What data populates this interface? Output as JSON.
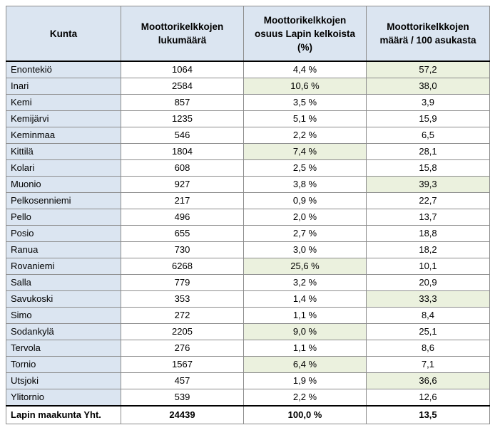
{
  "header": {
    "col1": "Kunta",
    "col2_line1": "Moottorikelkkojen",
    "col2_line2": "lukumäärä",
    "col3_line1": "Moottorikelkkojen",
    "col3_line2": "osuus Lapin kelkoista",
    "col3_line3": "(%)",
    "col4_line1": "Moottorikelkkojen",
    "col4_line2": "määrä / 100 asukasta"
  },
  "highlight_color": "#ebf1de",
  "name_column_color": "#dbe5f1",
  "rows": [
    {
      "kunta": "Enontekiö",
      "lukumaara": "1064",
      "osuus": "4,4 %",
      "per100": "57,2",
      "hl_osuus": false,
      "hl_per100": true
    },
    {
      "kunta": "Inari",
      "lukumaara": "2584",
      "osuus": "10,6 %",
      "per100": "38,0",
      "hl_osuus": true,
      "hl_per100": true
    },
    {
      "kunta": "Kemi",
      "lukumaara": "857",
      "osuus": "3,5 %",
      "per100": "3,9",
      "hl_osuus": false,
      "hl_per100": false
    },
    {
      "kunta": "Kemijärvi",
      "lukumaara": "1235",
      "osuus": "5,1 %",
      "per100": "15,9",
      "hl_osuus": false,
      "hl_per100": false
    },
    {
      "kunta": "Keminmaa",
      "lukumaara": "546",
      "osuus": "2,2 %",
      "per100": "6,5",
      "hl_osuus": false,
      "hl_per100": false
    },
    {
      "kunta": "Kittilä",
      "lukumaara": "1804",
      "osuus": "7,4 %",
      "per100": "28,1",
      "hl_osuus": true,
      "hl_per100": false
    },
    {
      "kunta": "Kolari",
      "lukumaara": "608",
      "osuus": "2,5 %",
      "per100": "15,8",
      "hl_osuus": false,
      "hl_per100": false
    },
    {
      "kunta": "Muonio",
      "lukumaara": "927",
      "osuus": "3,8 %",
      "per100": "39,3",
      "hl_osuus": false,
      "hl_per100": true
    },
    {
      "kunta": "Pelkosenniemi",
      "lukumaara": "217",
      "osuus": "0,9 %",
      "per100": "22,7",
      "hl_osuus": false,
      "hl_per100": false
    },
    {
      "kunta": "Pello",
      "lukumaara": "496",
      "osuus": "2,0 %",
      "per100": "13,7",
      "hl_osuus": false,
      "hl_per100": false
    },
    {
      "kunta": "Posio",
      "lukumaara": "655",
      "osuus": "2,7 %",
      "per100": "18,8",
      "hl_osuus": false,
      "hl_per100": false
    },
    {
      "kunta": "Ranua",
      "lukumaara": "730",
      "osuus": "3,0 %",
      "per100": "18,2",
      "hl_osuus": false,
      "hl_per100": false
    },
    {
      "kunta": "Rovaniemi",
      "lukumaara": "6268",
      "osuus": "25,6 %",
      "per100": "10,1",
      "hl_osuus": true,
      "hl_per100": false
    },
    {
      "kunta": "Salla",
      "lukumaara": "779",
      "osuus": "3,2 %",
      "per100": "20,9",
      "hl_osuus": false,
      "hl_per100": false
    },
    {
      "kunta": "Savukoski",
      "lukumaara": "353",
      "osuus": "1,4 %",
      "per100": "33,3",
      "hl_osuus": false,
      "hl_per100": true
    },
    {
      "kunta": "Simo",
      "lukumaara": "272",
      "osuus": "1,1 %",
      "per100": "8,4",
      "hl_osuus": false,
      "hl_per100": false
    },
    {
      "kunta": "Sodankylä",
      "lukumaara": "2205",
      "osuus": "9,0 %",
      "per100": "25,1",
      "hl_osuus": true,
      "hl_per100": false
    },
    {
      "kunta": "Tervola",
      "lukumaara": "276",
      "osuus": "1,1 %",
      "per100": "8,6",
      "hl_osuus": false,
      "hl_per100": false
    },
    {
      "kunta": "Tornio",
      "lukumaara": "1567",
      "osuus": "6,4 %",
      "per100": "7,1",
      "hl_osuus": true,
      "hl_per100": false
    },
    {
      "kunta": "Utsjoki",
      "lukumaara": "457",
      "osuus": "1,9 %",
      "per100": "36,6",
      "hl_osuus": false,
      "hl_per100": true
    },
    {
      "kunta": "Ylitornio",
      "lukumaara": "539",
      "osuus": "2,2 %",
      "per100": "12,6",
      "hl_osuus": false,
      "hl_per100": false
    }
  ],
  "total": {
    "kunta": "Lapin maakunta Yht.",
    "lukumaara": "24439",
    "osuus": "100,0 %",
    "per100": "13,5"
  }
}
